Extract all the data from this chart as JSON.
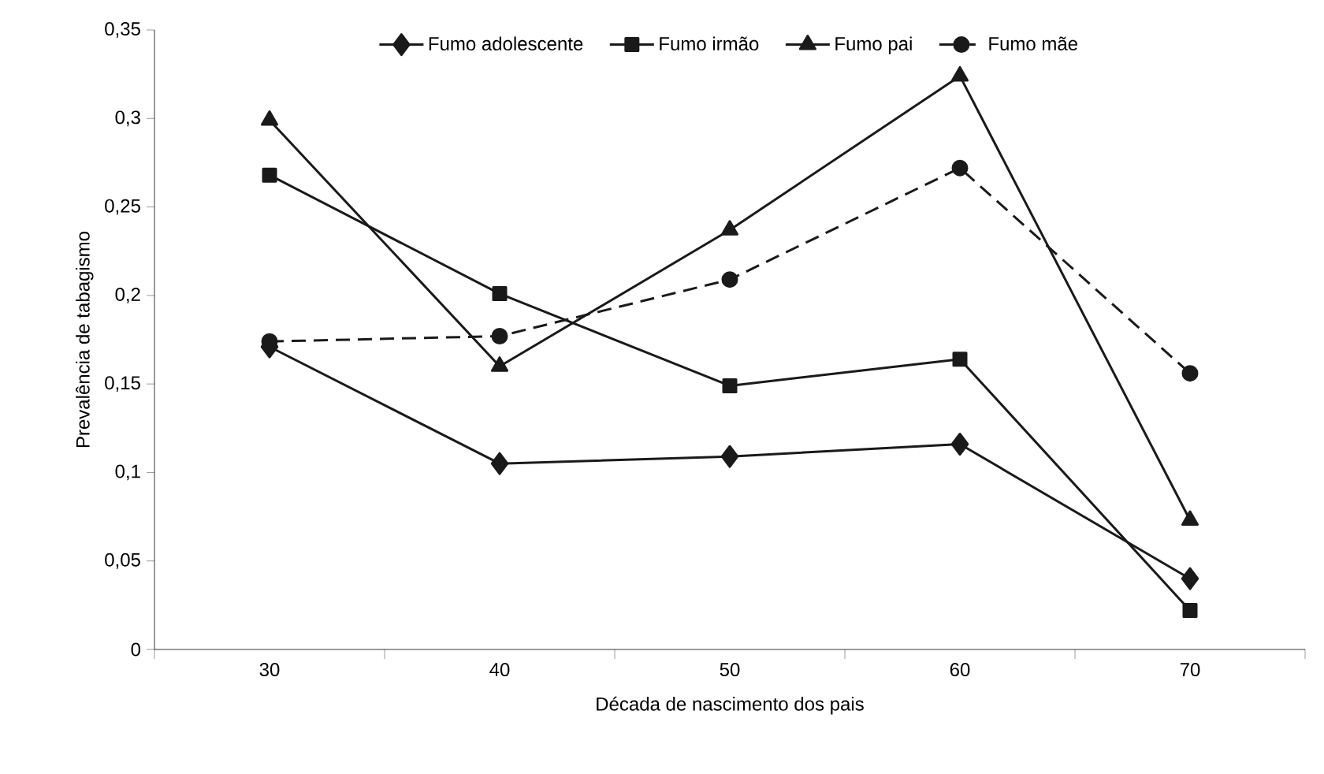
{
  "chart_data": {
    "type": "line",
    "xlabel": "Década de nascimento dos pais",
    "ylabel": "Prevalência de tabagismo",
    "categories": [
      "30",
      "40",
      "50",
      "60",
      "70"
    ],
    "ylim": [
      0,
      0.35
    ],
    "yticks": [
      0,
      {
        "value": 0.05,
        "label": "0,05"
      },
      {
        "value": 0.1,
        "label": "0,1"
      },
      {
        "value": 0.15,
        "label": "0,15"
      },
      {
        "value": 0.2,
        "label": "0,2"
      },
      {
        "value": 0.25,
        "label": "0,25"
      },
      {
        "value": 0.3,
        "label": "0,3"
      },
      {
        "value": 0.35,
        "label": "0,35"
      }
    ],
    "legend": "top",
    "series": [
      {
        "name": "Fumo adolescente",
        "color": "#1a1a1a",
        "marker": "diamond",
        "line_style": "solid",
        "values": [
          0.171,
          0.105,
          0.109,
          0.116,
          0.04
        ]
      },
      {
        "name": "Fumo irmão",
        "color": "#1a1a1a",
        "marker": "square",
        "line_style": "solid",
        "values": [
          0.268,
          0.201,
          0.149,
          0.164,
          0.022
        ]
      },
      {
        "name": "Fumo pai",
        "color": "#1a1a1a",
        "marker": "triangle",
        "line_style": "solid",
        "values": [
          0.299,
          0.16,
          0.237,
          0.324,
          0.073
        ]
      },
      {
        "name": "Fumo mãe",
        "color": "#1a1a1a",
        "marker": "circle",
        "line_style": "dashed",
        "values": [
          0.174,
          0.177,
          0.209,
          0.272,
          0.156
        ]
      }
    ]
  }
}
